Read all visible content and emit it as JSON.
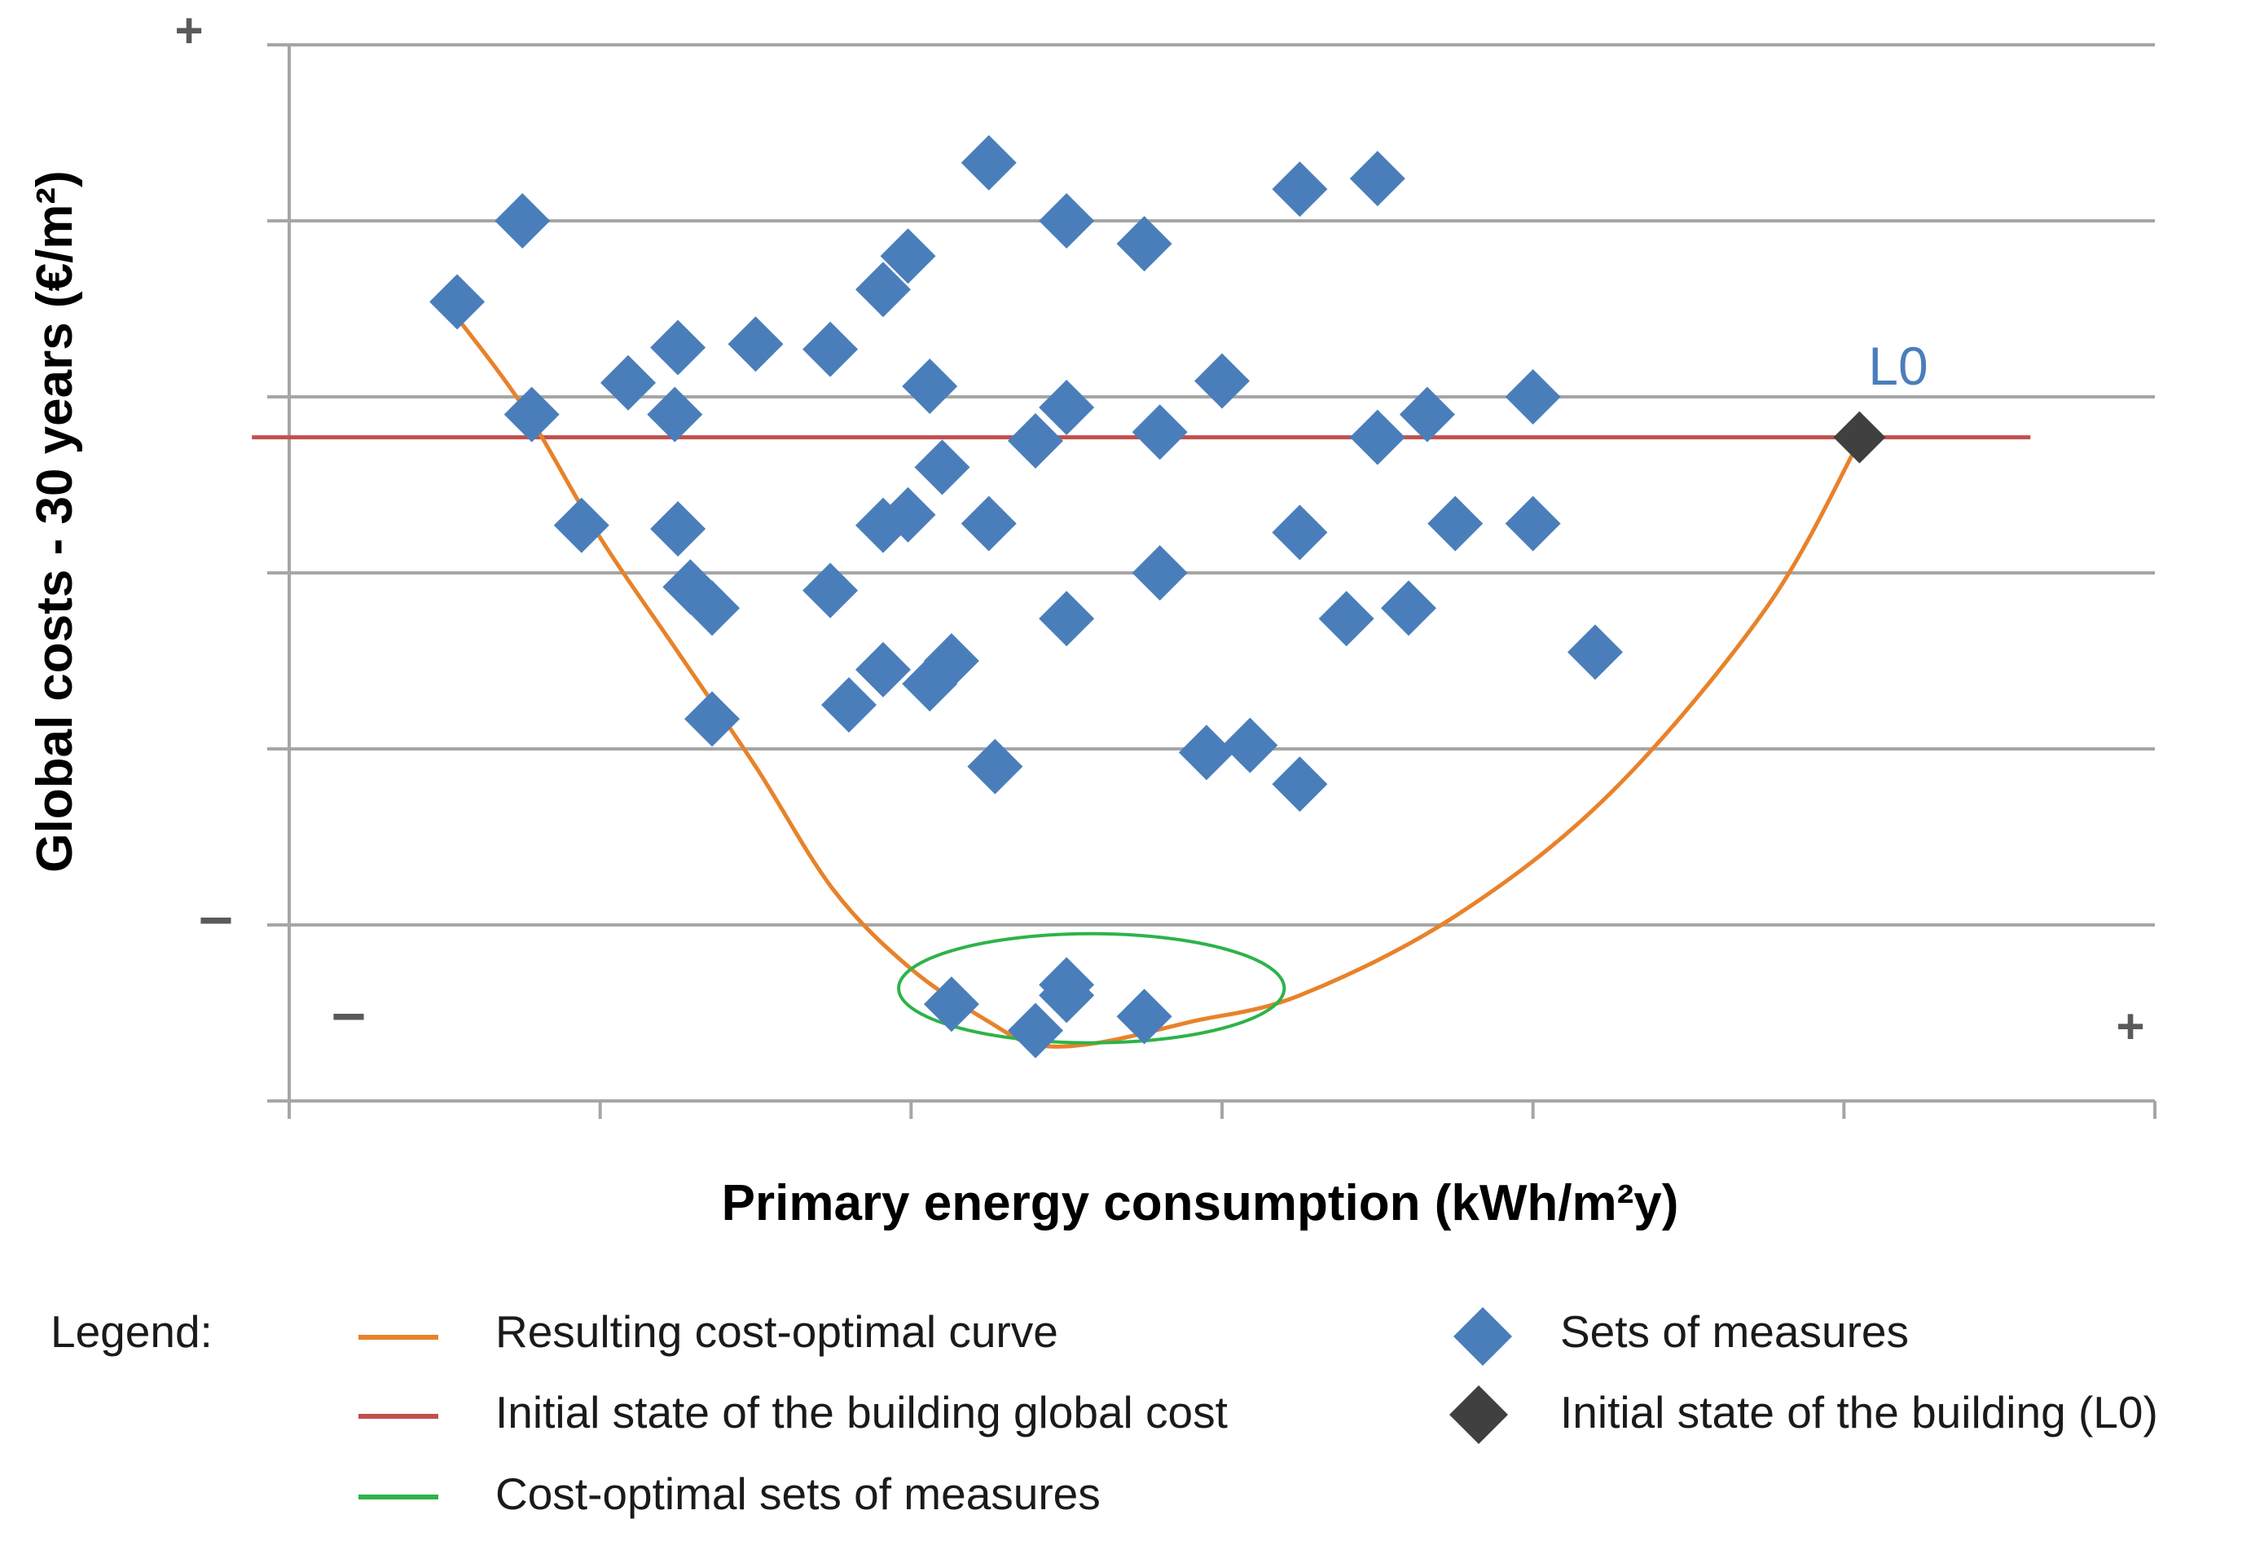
{
  "chart_data": {
    "type": "scatter",
    "title": "",
    "xlabel": "Primary energy consumption (kWh/m²y)",
    "ylabel": "Global costs - 30 years (€/m²)",
    "xlim": [
      0,
      6
    ],
    "ylim": [
      0,
      6
    ],
    "grid": "horizontal",
    "axis_signs": {
      "y_top": "+",
      "y_bottom": "–",
      "x_left": "–",
      "x_right": "+"
    },
    "series": [
      {
        "name": "Sets of measures",
        "marker": "diamond",
        "color": "#4a7ebb",
        "points": [
          [
            0.54,
            4.54
          ],
          [
            0.75,
            5.0
          ],
          [
            0.78,
            3.9
          ],
          [
            0.94,
            3.27
          ],
          [
            1.09,
            4.08
          ],
          [
            1.24,
            3.9
          ],
          [
            1.25,
            4.28
          ],
          [
            1.25,
            3.25
          ],
          [
            1.29,
            2.92
          ],
          [
            1.36,
            2.8
          ],
          [
            1.36,
            2.17
          ],
          [
            1.5,
            4.3
          ],
          [
            1.74,
            4.27
          ],
          [
            1.74,
            2.9
          ],
          [
            1.8,
            2.25
          ],
          [
            1.91,
            4.61
          ],
          [
            1.91,
            3.27
          ],
          [
            1.91,
            2.45
          ],
          [
            1.99,
            3.33
          ],
          [
            1.99,
            4.8
          ],
          [
            2.06,
            4.06
          ],
          [
            2.06,
            2.37
          ],
          [
            2.1,
            3.6
          ],
          [
            2.13,
            2.5
          ],
          [
            2.13,
            0.55
          ],
          [
            2.25,
            5.33
          ],
          [
            2.25,
            3.28
          ],
          [
            2.27,
            1.9
          ],
          [
            2.4,
            0.4
          ],
          [
            2.4,
            3.75
          ],
          [
            2.5,
            3.94
          ],
          [
            2.5,
            5.0
          ],
          [
            2.5,
            2.74
          ],
          [
            2.5,
            0.66
          ],
          [
            2.5,
            0.6
          ],
          [
            2.75,
            4.87
          ],
          [
            2.8,
            3.8
          ],
          [
            2.8,
            3.0
          ],
          [
            2.75,
            0.48
          ],
          [
            2.95,
            1.98
          ],
          [
            3.0,
            4.09
          ],
          [
            3.09,
            2.02
          ],
          [
            3.25,
            5.18
          ],
          [
            3.25,
            3.23
          ],
          [
            3.25,
            1.8
          ],
          [
            3.4,
            2.74
          ],
          [
            3.5,
            5.24
          ],
          [
            3.5,
            3.77
          ],
          [
            3.6,
            2.8
          ],
          [
            3.66,
            3.9
          ],
          [
            3.75,
            3.28
          ],
          [
            4.0,
            4.0
          ],
          [
            4.0,
            3.28
          ],
          [
            4.2,
            2.55
          ]
        ]
      },
      {
        "name": "Initial state of the building (L0)",
        "marker": "diamond",
        "color": "#404040",
        "points": [
          [
            5.05,
            3.77
          ]
        ]
      }
    ],
    "lines": [
      {
        "name": "Resulting cost-optimal curve",
        "color": "#e8822a",
        "points": [
          [
            0.5,
            4.54
          ],
          [
            0.75,
            3.95
          ],
          [
            1.0,
            3.2
          ],
          [
            1.25,
            2.55
          ],
          [
            1.5,
            1.9
          ],
          [
            1.75,
            1.2
          ],
          [
            2.0,
            0.75
          ],
          [
            2.25,
            0.45
          ],
          [
            2.4,
            0.32
          ],
          [
            2.6,
            0.33
          ],
          [
            2.9,
            0.45
          ],
          [
            3.25,
            0.6
          ],
          [
            3.75,
            1.05
          ],
          [
            4.25,
            1.75
          ],
          [
            4.75,
            2.8
          ],
          [
            5.05,
            3.75
          ]
        ]
      },
      {
        "name": "Initial state of the building global cost",
        "color": "#c0504d",
        "y": 3.77,
        "x_range": [
          -0.12,
          5.6
        ]
      }
    ],
    "ellipse": {
      "name": "Cost-optimal sets of measures",
      "color": "#2db34a",
      "center": [
        2.58,
        0.64
      ],
      "rx": 0.62,
      "ry": 0.31
    },
    "annotations": [
      {
        "text": "L0",
        "at": [
          5.05,
          3.77
        ],
        "color": "#4a7ebb"
      }
    ],
    "legend": {
      "label": "Legend:",
      "placement": "bottom",
      "items": [
        {
          "text": "Resulting cost-optimal curve",
          "symbol": "line",
          "color": "#e8822a"
        },
        {
          "text": "Initial state of the building global cost",
          "symbol": "line",
          "color": "#c0504d"
        },
        {
          "text": "Cost-optimal sets of measures",
          "symbol": "line",
          "color": "#2db34a"
        },
        {
          "text": "Sets of measures",
          "symbol": "diamond",
          "color": "#4a7ebb"
        },
        {
          "text": "Initial state of the building (L0)",
          "symbol": "diamond",
          "color": "#404040"
        }
      ]
    }
  }
}
